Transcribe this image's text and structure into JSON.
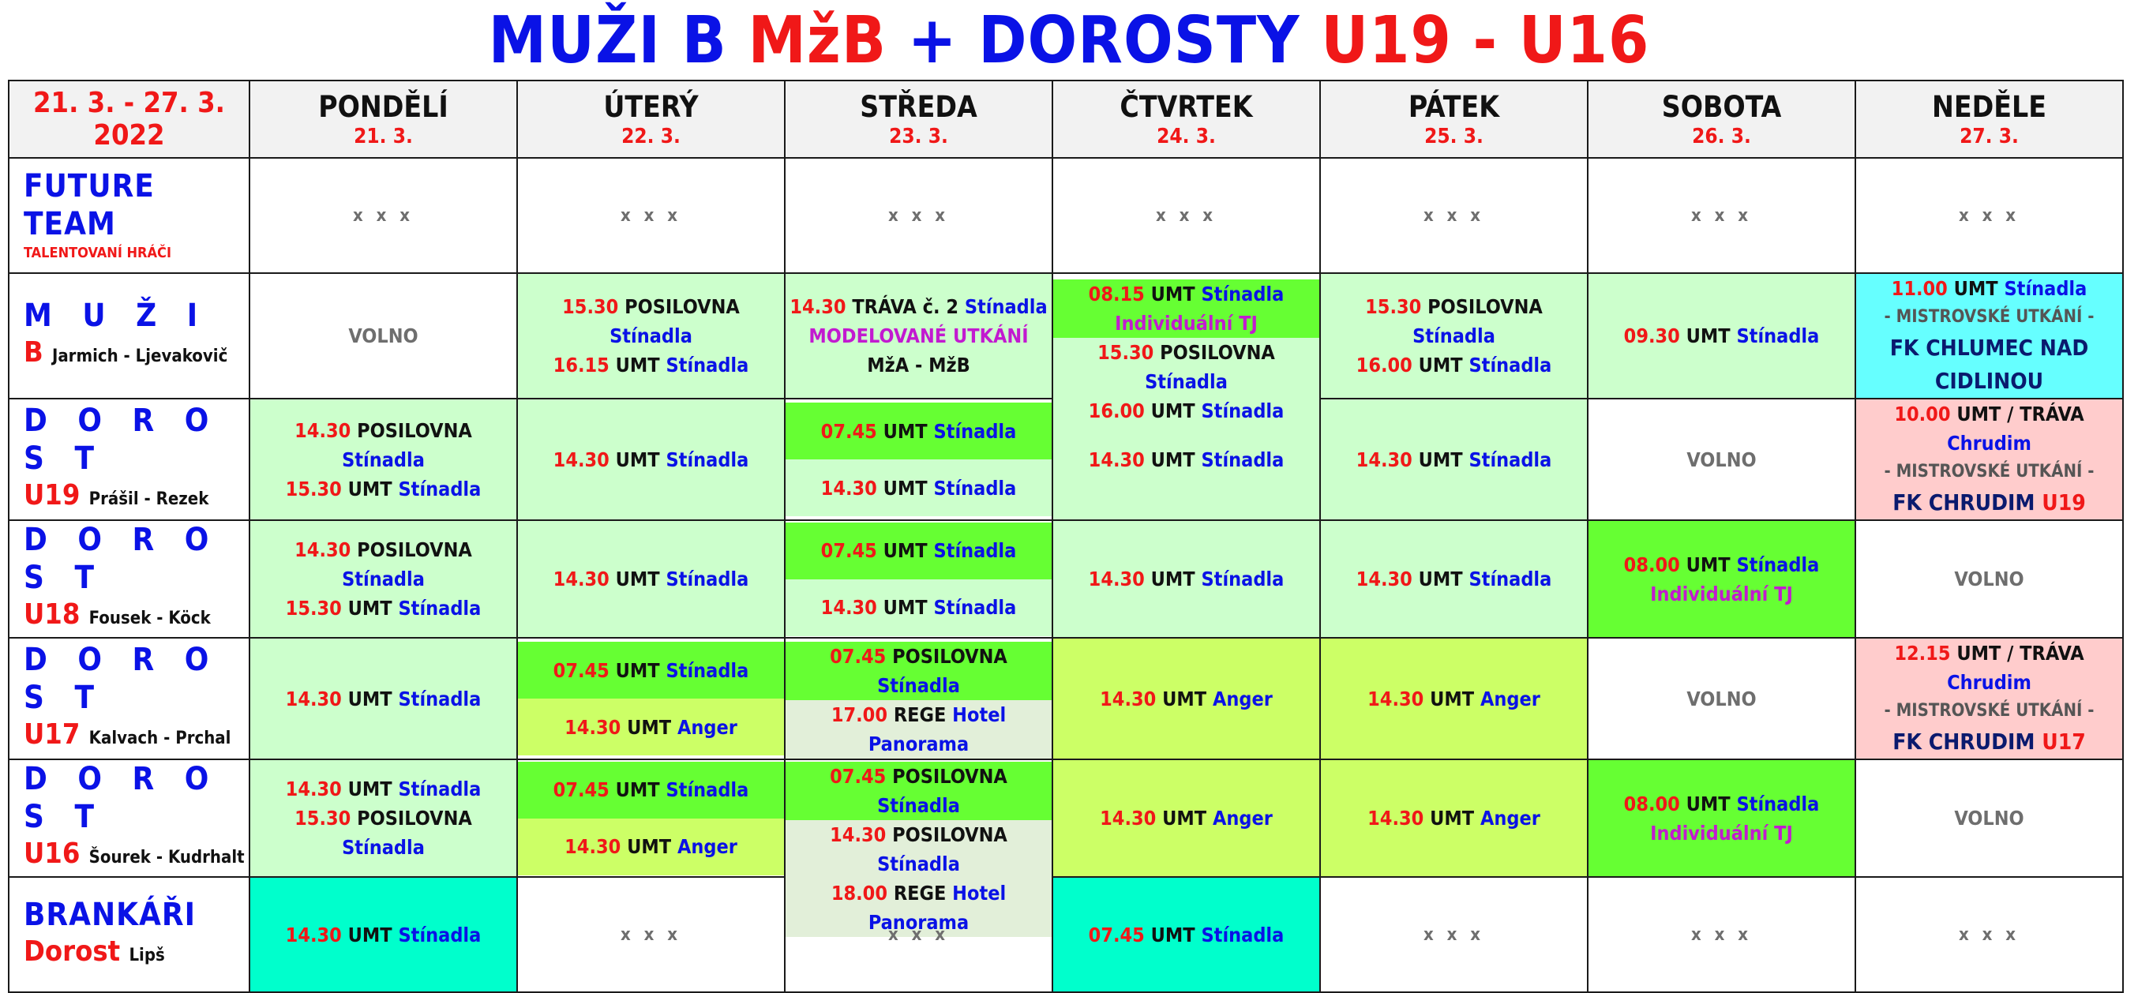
{
  "title": {
    "p1": "MUŽI B",
    "p2": "MžB",
    "p3": "+ DOROSTY",
    "p4": "U19 - U16"
  },
  "range": "21. 3. - 27. 3. 2022",
  "days": [
    {
      "name": "PONDĚLÍ",
      "date": "21. 3."
    },
    {
      "name": "ÚTERÝ",
      "date": "22. 3."
    },
    {
      "name": "STŘEDA",
      "date": "23. 3."
    },
    {
      "name": "ČTVRTEK",
      "date": "24. 3."
    },
    {
      "name": "PÁTEK",
      "date": "25. 3."
    },
    {
      "name": "SOBOTA",
      "date": "26. 3."
    },
    {
      "name": "NEDĚLE",
      "date": "27. 3."
    }
  ],
  "rows": {
    "future": {
      "l1": "FUTURE TEAM",
      "l2": "TALENTOVANÍ HRÁČI"
    },
    "muzi": {
      "l1": "M U Ž I",
      "team": "B",
      "coaches": "Jarmich - Ljevakovič"
    },
    "u19": {
      "l1": "D O R O S T",
      "team": "U19",
      "coaches": "Prášil - Rezek"
    },
    "u18": {
      "l1": "D O R O S T",
      "team": "U18",
      "coaches": "Fousek - Köck"
    },
    "u17": {
      "l1": "D O R O S T",
      "team": "U17",
      "coaches": "Kalvach - Prchal"
    },
    "u16": {
      "l1": "D O R O S T",
      "team": "U16",
      "coaches": "Šourek - Kudrhalt"
    },
    "gk": {
      "l1": "BRANKÁŘI",
      "team": "Dorost",
      "coaches": "Lipš"
    }
  },
  "words": {
    "xxx": "x x x",
    "volno": "VOLNO",
    "umt": "UMT",
    "posilovna": "POSILOVNA",
    "stinadla": "Stínadla",
    "anger": "Anger",
    "trava_c2": "TRÁVA č. 2",
    "umt_trava": "UMT / TRÁVA",
    "chrudim": "Chrudim",
    "individualni": "Individuální TJ",
    "modelovane": "MODELOVANÉ UTKÁNÍ",
    "mza_mzb": "MžA - MžB",
    "mistrovske": "- MISTROVSKÉ UTKÁNÍ -",
    "rege": "REGE",
    "hotel": "Hotel Panorama",
    "fk_chlumec": "FK CHLUMEC NAD CIDLINOU",
    "fk_chrudim": "FK CHRUDIM",
    "u19": "U19",
    "u17": "U17"
  },
  "times": {
    "t0745": "07.45",
    "t0800": "08.00",
    "t0815": "08.15",
    "t0930": "09.30",
    "t1000": "10.00",
    "t1100": "11.00",
    "t1215": "12.15",
    "t1430": "14.30",
    "t1530": "15.30",
    "t1600": "16.00",
    "t1615": "16.15",
    "t1700": "17.00",
    "t1800": "18.00"
  },
  "colors": {
    "blue": "#0a12e6",
    "red": "#f01818",
    "light_green": "#ccffcc",
    "green": "#66ff33",
    "yellow_green": "#ccff66",
    "cyan": "#66ffff",
    "pink": "#ffcccc",
    "beige_green": "#e2efd9",
    "turquoise": "#00ffcc"
  }
}
